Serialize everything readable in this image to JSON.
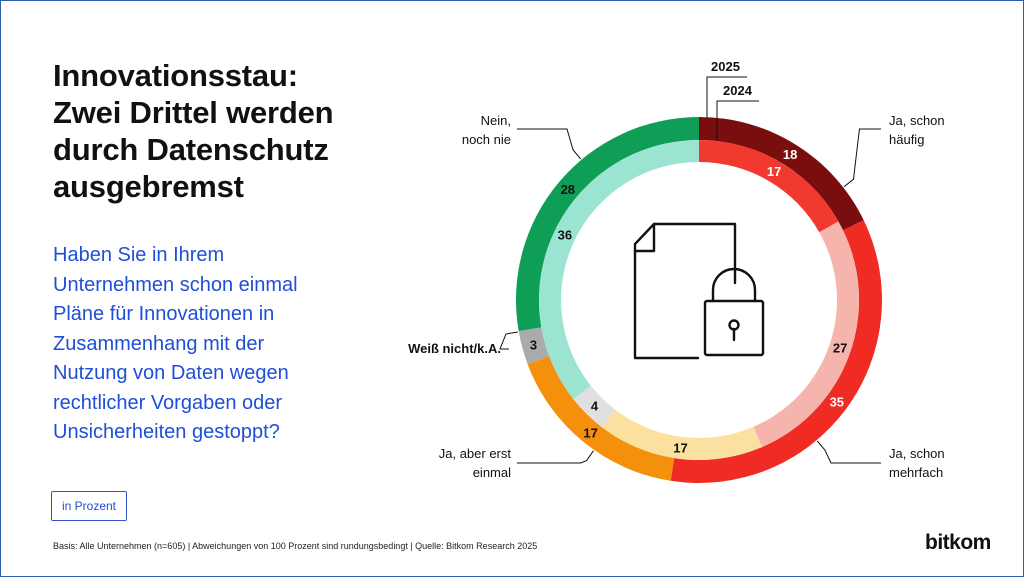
{
  "title_lines": [
    "Innovationsstau:",
    "Zwei Drittel werden",
    "durch Datenschutz",
    "ausgebremst"
  ],
  "question_lines": [
    "Haben Sie in Ihrem",
    "Unternehmen schon einmal",
    "Pläne für Innovationen in",
    "Zusammenhang mit der",
    "Nutzung von Daten wegen",
    "rechtlicher Vorgaben oder",
    "Unsicherheiten gestoppt?"
  ],
  "unit_label": "in Prozent",
  "footnote": "Basis: Alle Unternehmen (n=605) | Abweichungen von 100 Prozent sind rundungsbedingt | Quelle: Bitkom Research 2025",
  "brand": "bitkom",
  "icon": "document-with-padlock-icon",
  "chart_data": {
    "type": "donut",
    "ring_labels": {
      "outer": "2025",
      "inner": "2024"
    },
    "categories": [
      {
        "key": "haeufig",
        "label_lines": [
          "Ja, schon",
          "häufig"
        ]
      },
      {
        "key": "mehrfach",
        "label_lines": [
          "Ja, schon",
          "mehrfach"
        ]
      },
      {
        "key": "erst_einmal",
        "label_lines": [
          "Ja, aber erst",
          "einmal"
        ]
      },
      {
        "key": "weiss_nicht",
        "label_lines": [
          "Weiß nicht/k.A."
        ]
      },
      {
        "key": "nie",
        "label_lines": [
          "Nein,",
          "noch nie"
        ]
      }
    ],
    "series": [
      {
        "name": "2025",
        "ring": "outer",
        "values": [
          18,
          35,
          17,
          3,
          28
        ],
        "colors": [
          "#7a0e0e",
          "#ef2b24",
          "#f5900d",
          "#ababab",
          "#0f9e55"
        ]
      },
      {
        "name": "2024",
        "ring": "inner",
        "values": [
          17,
          27,
          17,
          4,
          36
        ],
        "colors": [
          "#f2392f",
          "#f5b5ad",
          "#fbe0a0",
          "#e0e0e0",
          "#9ce4d2"
        ]
      }
    ],
    "value_label_colors": {
      "outer": [
        "#ffffff",
        "#ffffff",
        "#111111",
        "#111111",
        "#111111"
      ],
      "inner": [
        "#ffffff",
        "#111111",
        "#111111",
        "#111111",
        "#111111"
      ]
    }
  }
}
